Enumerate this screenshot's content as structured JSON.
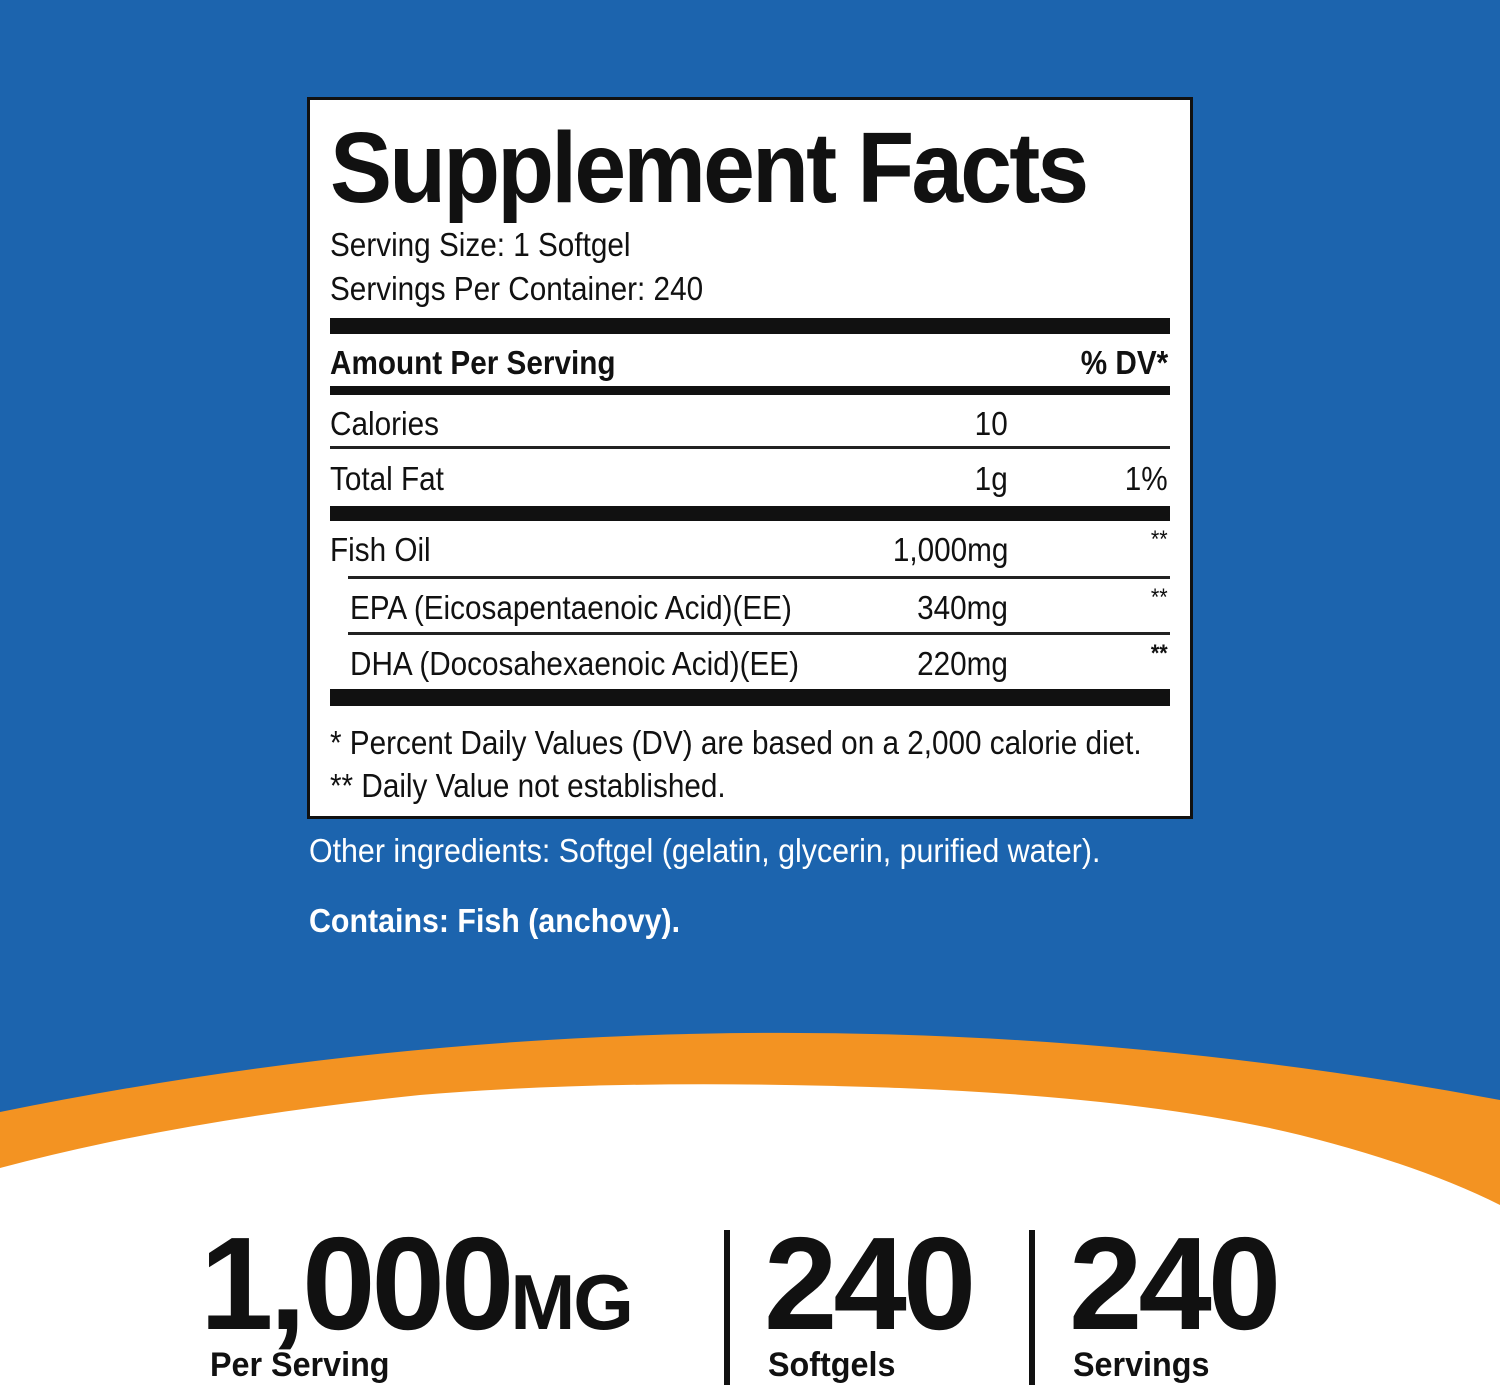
{
  "colors": {
    "background_blue": "#1c64ae",
    "accent_orange": "#f39322",
    "label_white": "#ffffff",
    "text_black": "#111111"
  },
  "label": {
    "title": "Supplement Facts",
    "serving_size": "Serving Size: 1 Softgel",
    "servings_per_container": "Servings Per Container: 240",
    "header_left": "Amount Per Serving",
    "header_right": "% DV*",
    "rows": [
      {
        "name": "Calories",
        "amount": "10",
        "dv": ""
      },
      {
        "name": "Total Fat",
        "amount": "1g",
        "dv": "1%"
      },
      {
        "name": "Fish Oil",
        "amount": "1,000mg",
        "dv": "**"
      },
      {
        "name": "EPA (Eicosapentaenoic Acid)(EE)",
        "amount": "340mg",
        "dv": "**"
      },
      {
        "name": "DHA (Docosahexaenoic Acid)(EE)",
        "amount": "220mg",
        "dv": "**"
      }
    ],
    "footnote_1": "* Percent Daily Values (DV) are based on a 2,000 calorie diet.",
    "footnote_2": "** Daily Value not established."
  },
  "other_ingredients": "Other ingredients: Softgel (gelatin, glycerin, purified water).",
  "contains": "Contains: Fish (anchovy).",
  "stats": [
    {
      "value": "1,000",
      "unit": "MG",
      "caption": "Per Serving"
    },
    {
      "value": "240",
      "unit": "",
      "caption": "Softgels"
    },
    {
      "value": "240",
      "unit": "",
      "caption": "Servings"
    }
  ]
}
